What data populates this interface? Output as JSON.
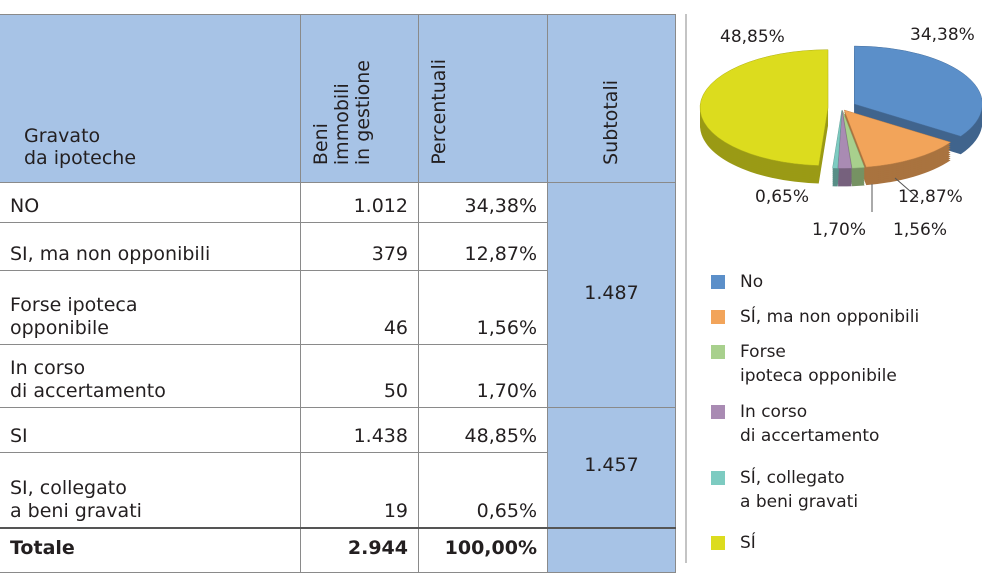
{
  "table": {
    "headers": [
      "Gravato\nda ipoteche",
      "Beni\nimmobili\nin gestione",
      "Percentuali",
      "Subtotali"
    ],
    "rows": [
      [
        "NO",
        "1.012",
        "34,38%"
      ],
      [
        "SI, ma non opponibili",
        "379",
        "12,87%"
      ],
      [
        "Forse ipoteca\nopponibile",
        "46",
        "1,56%"
      ],
      [
        "In corso\ndi accertamento",
        "50",
        "1,70%"
      ],
      [
        "SI",
        "1.438",
        "48,85%"
      ],
      [
        "SI, collegato\na beni gravati",
        "19",
        "0,65%"
      ]
    ],
    "subtotals": [
      "1.487",
      "1.457"
    ],
    "total": [
      "Totale",
      "2.944",
      "100,00%"
    ]
  },
  "chart_data": {
    "type": "pie",
    "categories": [
      "No",
      "SÍ, ma non opponibili",
      "Forse\nipoteca opponibile",
      "In corso\ndi accertamento",
      "SÍ, collegato\na beni gravati",
      "SÍ"
    ],
    "values": [
      34.38,
      12.87,
      1.56,
      1.7,
      0.65,
      48.85
    ],
    "value_labels": [
      "34,38%",
      "12,87%",
      "1,56%",
      "1,70%",
      "0,65%",
      "48,85%"
    ],
    "colors": [
      "#5b8fc9",
      "#f2a45a",
      "#a8d08d",
      "#a98bb3",
      "#7dcbc1",
      "#dcdc1e"
    ]
  }
}
